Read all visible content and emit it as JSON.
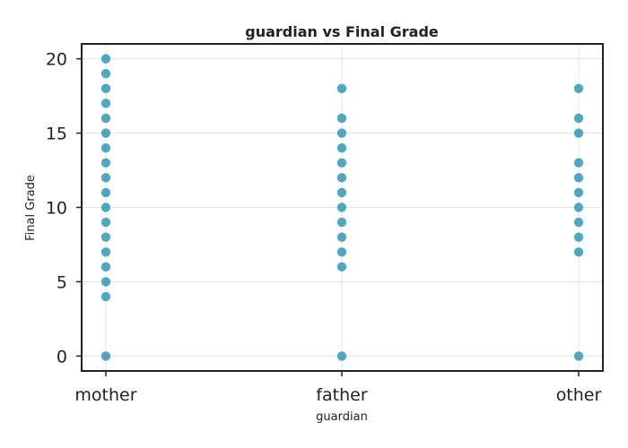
{
  "chart_data": {
    "type": "scatter",
    "title": "guardian vs Final Grade",
    "xlabel": "guardian",
    "ylabel": "Final Grade",
    "categories": [
      "mother",
      "father",
      "other"
    ],
    "y_ticks": [
      "0",
      "5",
      "10",
      "15",
      "20"
    ],
    "ylim": [
      -1,
      21
    ],
    "grid": true,
    "marker_color": "#1a8aa8",
    "series": [
      {
        "points": [
          {
            "x": "mother",
            "y": 0
          },
          {
            "x": "mother",
            "y": 4
          },
          {
            "x": "mother",
            "y": 5
          },
          {
            "x": "mother",
            "y": 6
          },
          {
            "x": "mother",
            "y": 7
          },
          {
            "x": "mother",
            "y": 8
          },
          {
            "x": "mother",
            "y": 9
          },
          {
            "x": "mother",
            "y": 10
          },
          {
            "x": "mother",
            "y": 11
          },
          {
            "x": "mother",
            "y": 12
          },
          {
            "x": "mother",
            "y": 13
          },
          {
            "x": "mother",
            "y": 14
          },
          {
            "x": "mother",
            "y": 15
          },
          {
            "x": "mother",
            "y": 16
          },
          {
            "x": "mother",
            "y": 17
          },
          {
            "x": "mother",
            "y": 18
          },
          {
            "x": "mother",
            "y": 19
          },
          {
            "x": "mother",
            "y": 20
          },
          {
            "x": "father",
            "y": 0
          },
          {
            "x": "father",
            "y": 6
          },
          {
            "x": "father",
            "y": 7
          },
          {
            "x": "father",
            "y": 8
          },
          {
            "x": "father",
            "y": 9
          },
          {
            "x": "father",
            "y": 10
          },
          {
            "x": "father",
            "y": 11
          },
          {
            "x": "father",
            "y": 12
          },
          {
            "x": "father",
            "y": 13
          },
          {
            "x": "father",
            "y": 14
          },
          {
            "x": "father",
            "y": 15
          },
          {
            "x": "father",
            "y": 16
          },
          {
            "x": "father",
            "y": 18
          },
          {
            "x": "other",
            "y": 0
          },
          {
            "x": "other",
            "y": 7
          },
          {
            "x": "other",
            "y": 8
          },
          {
            "x": "other",
            "y": 9
          },
          {
            "x": "other",
            "y": 10
          },
          {
            "x": "other",
            "y": 11
          },
          {
            "x": "other",
            "y": 12
          },
          {
            "x": "other",
            "y": 13
          },
          {
            "x": "other",
            "y": 15
          },
          {
            "x": "other",
            "y": 16
          },
          {
            "x": "other",
            "y": 18
          }
        ]
      }
    ]
  }
}
